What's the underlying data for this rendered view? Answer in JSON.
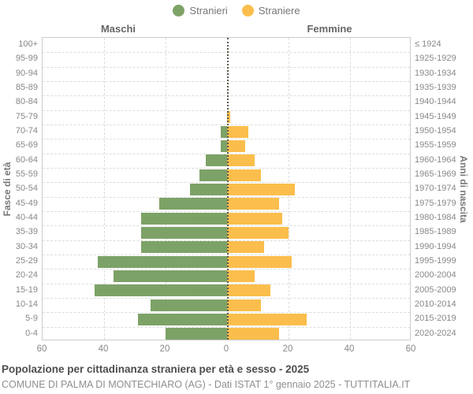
{
  "legend": [
    {
      "label": "Stranieri",
      "color": "#7DA267"
    },
    {
      "label": "Straniere",
      "color": "#FBBE4C"
    }
  ],
  "headers": {
    "left": "Maschi",
    "right": "Femmine"
  },
  "axis": {
    "left_label": "Fasce di età",
    "right_label": "Anni di nascita",
    "x_ticks": [
      "60",
      "40",
      "20",
      "0",
      "20",
      "40",
      "60"
    ]
  },
  "title": "Popolazione per cittadinanza straniera per età e sesso - 2025",
  "subtitle": "COMUNE DI PALMA DI MONTECHIARO (AG) - Dati ISTAT 1° gennaio 2025 - TUTTITALIA.IT",
  "chart_data": {
    "type": "bar",
    "subtype": "population_pyramid",
    "title": "Popolazione per cittadinanza straniera per età e sesso - 2025",
    "categories_age": [
      "100+",
      "95-99",
      "90-94",
      "85-89",
      "80-84",
      "75-79",
      "70-74",
      "65-69",
      "60-64",
      "55-59",
      "50-54",
      "45-49",
      "40-44",
      "35-39",
      "30-34",
      "25-29",
      "20-24",
      "15-19",
      "10-14",
      "5-9",
      "0-4"
    ],
    "categories_birth_years": [
      "≤ 1924",
      "1925-1929",
      "1930-1934",
      "1935-1939",
      "1940-1944",
      "1945-1949",
      "1950-1954",
      "1955-1959",
      "1960-1964",
      "1965-1969",
      "1970-1974",
      "1975-1979",
      "1980-1984",
      "1985-1989",
      "1990-1994",
      "1995-1999",
      "2000-2004",
      "2005-2009",
      "2010-2014",
      "2015-2019",
      "2020-2024"
    ],
    "series": [
      {
        "name": "Stranieri",
        "side": "male",
        "color": "#7DA267",
        "values": [
          0,
          0,
          0,
          0,
          0,
          0,
          2,
          2,
          7,
          9,
          12,
          22,
          28,
          28,
          28,
          42,
          37,
          43,
          25,
          29,
          20
        ]
      },
      {
        "name": "Straniere",
        "side": "female",
        "color": "#FBBE4C",
        "values": [
          0,
          0,
          0,
          0,
          0,
          1,
          7,
          6,
          9,
          11,
          22,
          17,
          18,
          20,
          12,
          21,
          9,
          14,
          11,
          26,
          17
        ]
      }
    ],
    "xlim": [
      -60,
      60
    ],
    "x_tick_values": [
      -60,
      -40,
      -20,
      0,
      20,
      40,
      60
    ],
    "ylabel_left": "Fasce di età",
    "ylabel_right": "Anni di nascita",
    "grid": true,
    "legend_position": "top-center"
  }
}
